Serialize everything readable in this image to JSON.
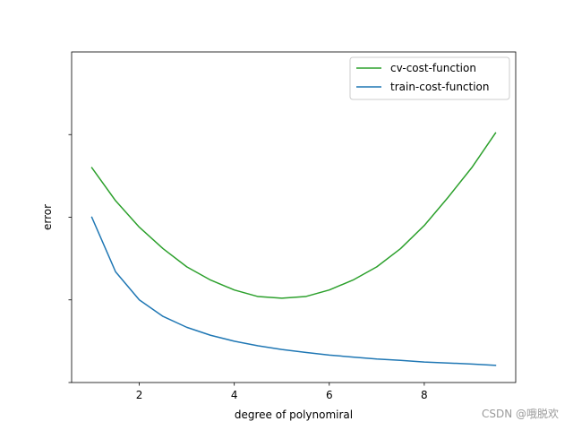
{
  "chart_data": {
    "type": "line",
    "title": "",
    "xlabel": "degree of polynomiral",
    "ylabel": "error",
    "xlim": [
      0.575,
      9.925
    ],
    "ylim": [
      0,
      1
    ],
    "xticks": [
      2,
      4,
      6,
      8
    ],
    "xtick_labels": [
      "2",
      "4",
      "6",
      "8"
    ],
    "yticks": [
      0,
      0.25,
      0.5,
      0.75
    ],
    "ytick_labels": [
      "",
      "",
      "",
      ""
    ],
    "grid": false,
    "legend_position": "upper-right",
    "series": [
      {
        "name": "cv-cost-function",
        "color": "#2ca02c",
        "x": [
          1,
          1.5,
          2,
          2.5,
          3,
          3.5,
          4,
          4.5,
          5,
          5.5,
          6,
          6.5,
          7,
          7.5,
          8,
          8.5,
          9,
          9.5
        ],
        "y": [
          0.65,
          0.55,
          0.47,
          0.405,
          0.35,
          0.31,
          0.28,
          0.26,
          0.255,
          0.26,
          0.28,
          0.31,
          0.35,
          0.405,
          0.475,
          0.56,
          0.65,
          0.755
        ]
      },
      {
        "name": "train-cost-function",
        "color": "#1f77b4",
        "x": [
          1,
          1.5,
          2,
          2.5,
          3,
          3.5,
          4,
          4.5,
          5,
          5.5,
          6,
          6.5,
          7,
          7.5,
          8,
          8.5,
          9,
          9.5
        ],
        "y": [
          0.5,
          0.335,
          0.25,
          0.2,
          0.167,
          0.143,
          0.125,
          0.111,
          0.1,
          0.091,
          0.083,
          0.077,
          0.071,
          0.067,
          0.062,
          0.059,
          0.056,
          0.052
        ]
      }
    ]
  },
  "watermark": "CSDN @哦脱欢"
}
